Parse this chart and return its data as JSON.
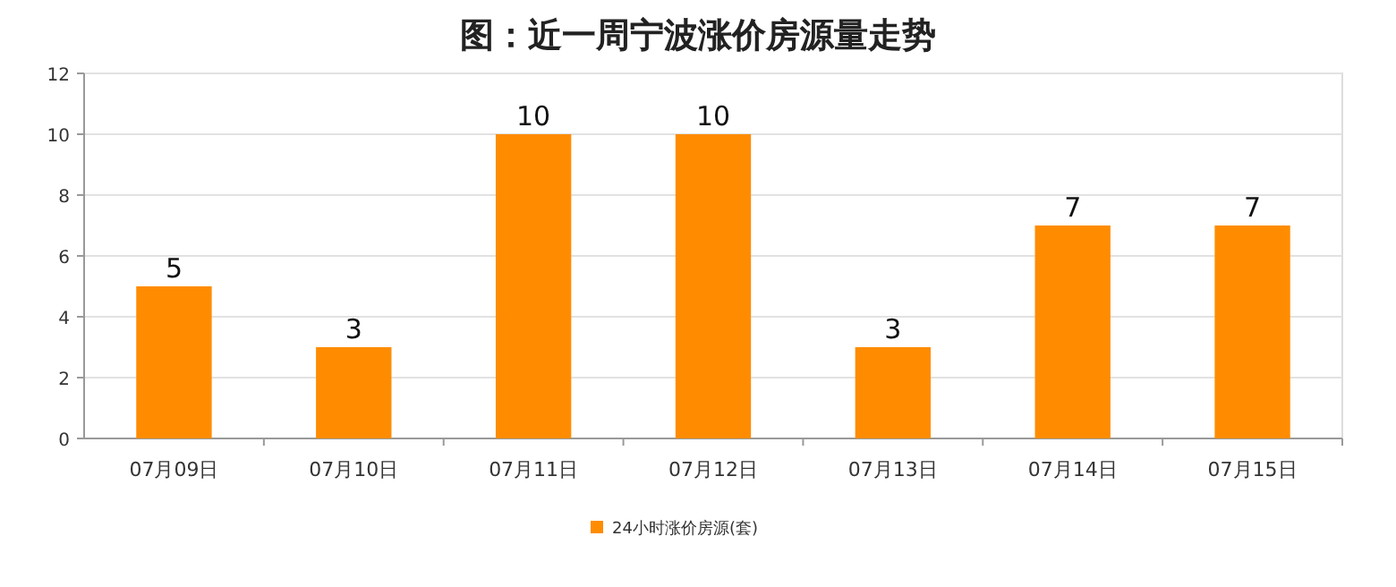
{
  "chart_data": {
    "type": "bar",
    "title": "图：近一周宁波涨价房源量走势",
    "categories": [
      "07月09日",
      "07月10日",
      "07月11日",
      "07月12日",
      "07月13日",
      "07月14日",
      "07月15日"
    ],
    "series": [
      {
        "name": "24小时涨价房源(套)",
        "color": "#ff8c00",
        "values": [
          5,
          3,
          10,
          10,
          3,
          7,
          7
        ]
      }
    ],
    "ylim": [
      0,
      12
    ],
    "yticks": [
      0,
      2,
      4,
      6,
      8,
      10,
      12
    ],
    "grid": "y",
    "legend": "bottom",
    "data_labels": true
  }
}
